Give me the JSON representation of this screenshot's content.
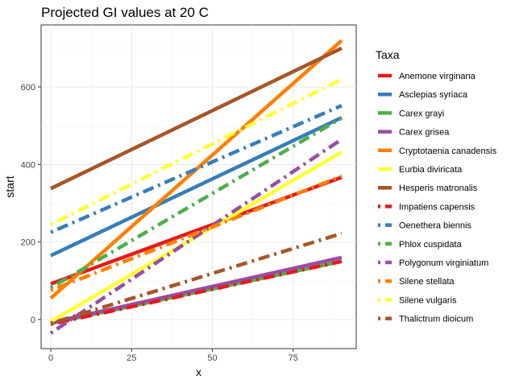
{
  "chart_data": {
    "type": "line",
    "title": "Projected GI values at 20 C",
    "xlabel": "x",
    "ylabel": "start",
    "xlim": [
      -3,
      94.5
    ],
    "ylim": [
      -75,
      760
    ],
    "x_ticks": [
      0,
      25,
      50,
      75
    ],
    "y_ticks": [
      0,
      200,
      400,
      600
    ],
    "grid": true,
    "legend": {
      "title": "Taxa",
      "position": "right"
    },
    "series": [
      {
        "name": "Anemone virginana",
        "color": "#E41A1C",
        "linetype": "solid",
        "x": [
          0,
          90
        ],
        "y": [
          92,
          367
        ]
      },
      {
        "name": "Asclepias syriaca",
        "color": "#377EB8",
        "linetype": "solid",
        "x": [
          0,
          90
        ],
        "y": [
          165,
          521
        ]
      },
      {
        "name": "Carex grayi",
        "color": "#4DAF4A",
        "linetype": "solid",
        "x": [
          0,
          90
        ],
        "y": [
          -10,
          150
        ]
      },
      {
        "name": "Carex grisea",
        "color": "#984EA3",
        "linetype": "solid",
        "x": [
          0,
          90
        ],
        "y": [
          -8,
          160
        ]
      },
      {
        "name": "Cryptotaenia canadensis",
        "color": "#FF7F00",
        "linetype": "solid",
        "x": [
          0,
          90
        ],
        "y": [
          55,
          720
        ]
      },
      {
        "name": "Eurbia diviricata",
        "color": "#FFFF33",
        "linetype": "solid",
        "x": [
          0,
          90
        ],
        "y": [
          -5,
          432
        ]
      },
      {
        "name": "Hesperis matronalis",
        "color": "#A65628",
        "linetype": "solid",
        "x": [
          0,
          90
        ],
        "y": [
          338,
          700
        ]
      },
      {
        "name": "Impatiens capensis",
        "color": "#E41A1C",
        "linetype": "dotdash",
        "x": [
          0,
          90
        ],
        "y": [
          -12,
          150
        ]
      },
      {
        "name": "Oenethera biennis",
        "color": "#377EB8",
        "linetype": "dotdash",
        "x": [
          0,
          90
        ],
        "y": [
          225,
          552
        ]
      },
      {
        "name": "Phlox cuspidata",
        "color": "#4DAF4A",
        "linetype": "dotdash",
        "x": [
          0,
          90
        ],
        "y": [
          82,
          520
        ]
      },
      {
        "name": "Polygonum virginiatum",
        "color": "#984EA3",
        "linetype": "dotdash",
        "x": [
          0,
          90
        ],
        "y": [
          -35,
          465
        ]
      },
      {
        "name": "Silene stellata",
        "color": "#FF7F00",
        "linetype": "dotdash",
        "x": [
          0,
          90
        ],
        "y": [
          75,
          370
        ]
      },
      {
        "name": "Silene vulgaris",
        "color": "#FFFF33",
        "linetype": "dotdash",
        "x": [
          0,
          90
        ],
        "y": [
          245,
          620
        ]
      },
      {
        "name": "Thalictrum dioicum",
        "color": "#A65628",
        "linetype": "dotdash",
        "x": [
          0,
          90
        ],
        "y": [
          -10,
          222
        ]
      }
    ]
  }
}
